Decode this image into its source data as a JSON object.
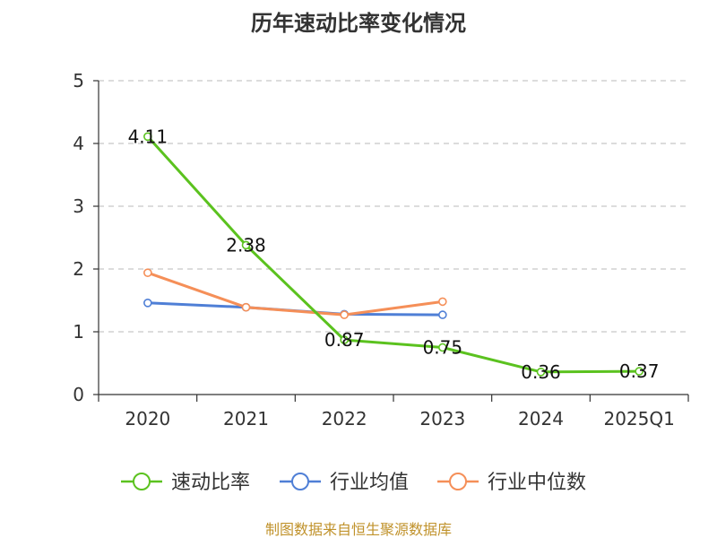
{
  "chart_data": {
    "type": "line",
    "title": "历年速动比率变化情况",
    "categories": [
      "2020",
      "2021",
      "2022",
      "2023",
      "2024",
      "2025Q1"
    ],
    "ylim": [
      0,
      5
    ],
    "yticks": [
      0,
      1,
      2,
      3,
      4,
      5
    ],
    "grid": true,
    "legend_position": "bottom",
    "series": [
      {
        "name": "速动比率",
        "color": "#5bc21f",
        "values": [
          4.11,
          2.38,
          0.87,
          0.75,
          0.36,
          0.37
        ],
        "labels": [
          "4.11",
          "2.38",
          "0.87",
          "0.75",
          "0.36",
          "0.37"
        ]
      },
      {
        "name": "行业均值",
        "color": "#4f7fd6",
        "values": [
          1.46,
          1.39,
          1.28,
          1.27,
          null,
          null
        ]
      },
      {
        "name": "行业中位数",
        "color": "#f58f58",
        "values": [
          1.94,
          1.39,
          1.27,
          1.48,
          null,
          null
        ]
      }
    ],
    "source": "制图数据来自恒生聚源数据库"
  }
}
